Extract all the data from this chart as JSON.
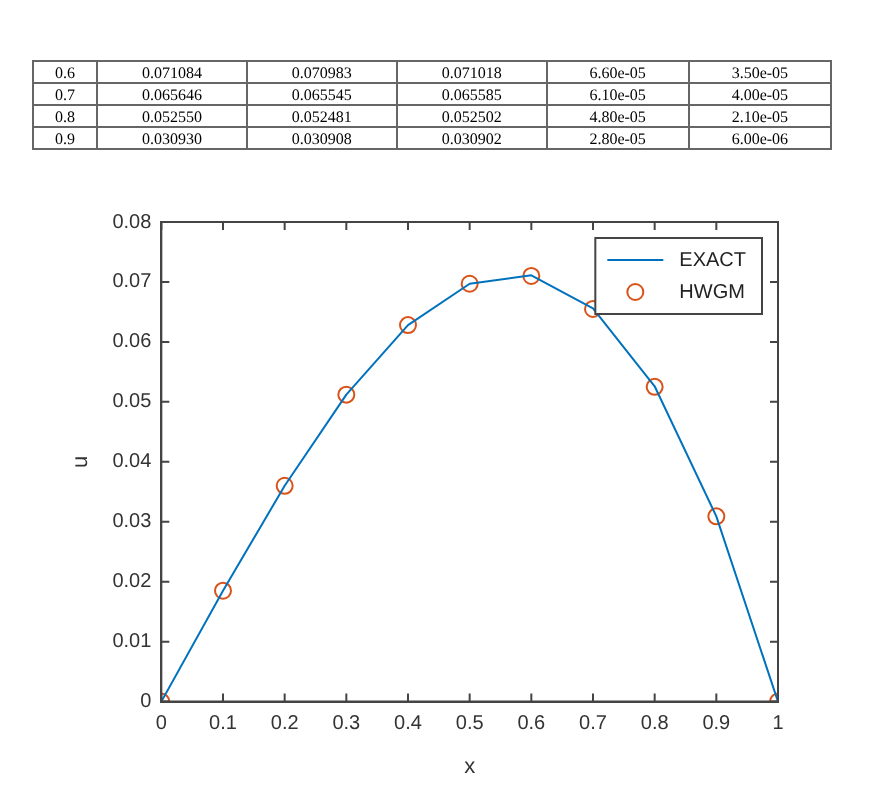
{
  "chart_data": {
    "type": "line",
    "xlabel": "x",
    "ylabel": "u",
    "x": [
      0,
      0.1,
      0.2,
      0.3,
      0.4,
      0.5,
      0.6,
      0.7,
      0.8,
      0.9,
      1
    ],
    "series": [
      {
        "name": "EXACT",
        "marker": "none",
        "color": "#0072bd",
        "values": [
          0,
          0.0185,
          0.036,
          0.0512,
          0.0628,
          0.0697,
          0.0711,
          0.0656,
          0.0526,
          0.0309,
          0
        ]
      },
      {
        "name": "HWGM",
        "type": "scatter",
        "marker": "circle",
        "color": "#d95319",
        "values": [
          0,
          0.0185,
          0.036,
          0.0512,
          0.0628,
          0.0697,
          0.071,
          0.0655,
          0.0525,
          0.0309,
          0
        ]
      }
    ],
    "xlim": [
      0,
      1
    ],
    "xticks": [
      0,
      0.1,
      0.2,
      0.3,
      0.4,
      0.5,
      0.6,
      0.7,
      0.8,
      0.9,
      1
    ],
    "ylim": [
      0,
      0.08
    ],
    "yticks": [
      0,
      0.01,
      0.02,
      0.03,
      0.04,
      0.05,
      0.06,
      0.07,
      0.08
    ],
    "grid": false,
    "legend": "top right",
    "line_style": "solid",
    "annotations": [
      "0.6 0.071084 0.070983 0.071018 6.60e-05 3.50e-05",
      "0.7 0.065646 0.065545 0.065585 6.10e-05 4.00e-05",
      "0.8 0.052550 0.052481 0.052502 4.80e-05 2.10e-05",
      "0.9 0.030930 0.030908 0.030902 2.80e-05 6.00e-06"
    ]
  }
}
